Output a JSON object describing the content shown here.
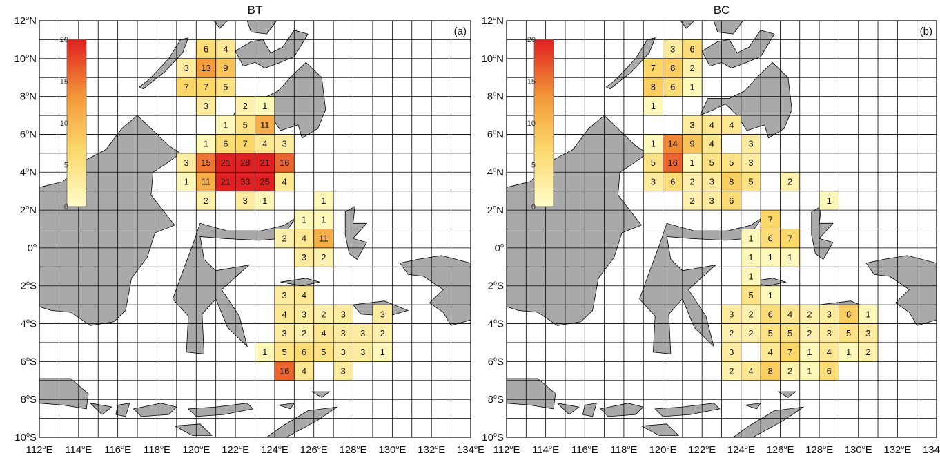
{
  "colorbar": {
    "min": 0,
    "max": 20,
    "ticks": [
      "0",
      "5",
      "10",
      "15",
      "20"
    ],
    "color_low": "#fffcc8",
    "color_high": "#e02020"
  },
  "land_color": "#a9a9a9",
  "x_ticks": [
    {
      "base": "112",
      "sup": "o",
      "suf": "E",
      "lon": 112
    },
    {
      "base": "114",
      "sup": "o",
      "suf": "E",
      "lon": 114
    },
    {
      "base": "116",
      "sup": "o",
      "suf": "E",
      "lon": 116
    },
    {
      "base": "118",
      "sup": "o",
      "suf": "E",
      "lon": 118
    },
    {
      "base": "120",
      "sup": "o",
      "suf": "E",
      "lon": 120
    },
    {
      "base": "122",
      "sup": "o",
      "suf": "E",
      "lon": 122
    },
    {
      "base": "124",
      "sup": "o",
      "suf": "E",
      "lon": 124
    },
    {
      "base": "126",
      "sup": "o",
      "suf": "E",
      "lon": 126
    },
    {
      "base": "128",
      "sup": "o",
      "suf": "E",
      "lon": 128
    },
    {
      "base": "130",
      "sup": "o",
      "suf": "E",
      "lon": 130
    },
    {
      "base": "132",
      "sup": "o",
      "suf": "E",
      "lon": 132
    },
    {
      "base": "134",
      "sup": "o",
      "suf": "E",
      "lon": 134
    }
  ],
  "y_ticks": [
    {
      "base": "12",
      "sup": "o",
      "suf": "N",
      "lat": 12
    },
    {
      "base": "10",
      "sup": "o",
      "suf": "N",
      "lat": 10
    },
    {
      "base": "8",
      "sup": "o",
      "suf": "N",
      "lat": 8
    },
    {
      "base": "6",
      "sup": "o",
      "suf": "N",
      "lat": 6
    },
    {
      "base": "4",
      "sup": "o",
      "suf": "N",
      "lat": 4
    },
    {
      "base": "2",
      "sup": "o",
      "suf": "N",
      "lat": 2
    },
    {
      "base": "0",
      "sup": "o",
      "suf": "",
      "lat": 0
    },
    {
      "base": "2",
      "sup": "o",
      "suf": "S",
      "lat": -2
    },
    {
      "base": "4",
      "sup": "o",
      "suf": "S",
      "lat": -4
    },
    {
      "base": "6",
      "sup": "o",
      "suf": "S",
      "lat": -6
    },
    {
      "base": "8",
      "sup": "o",
      "suf": "S",
      "lat": -8
    },
    {
      "base": "10",
      "sup": "o",
      "suf": "S",
      "lat": -10
    }
  ],
  "panels": [
    {
      "title": "BT",
      "label": "(a)",
      "cells": [
        {
          "lon": 120,
          "lat": 10,
          "v": 6
        },
        {
          "lon": 121,
          "lat": 10,
          "v": 4
        },
        {
          "lon": 119,
          "lat": 9,
          "v": 3
        },
        {
          "lon": 120,
          "lat": 9,
          "v": 13
        },
        {
          "lon": 121,
          "lat": 9,
          "v": 9
        },
        {
          "lon": 119,
          "lat": 8,
          "v": 7
        },
        {
          "lon": 120,
          "lat": 8,
          "v": 7
        },
        {
          "lon": 121,
          "lat": 8,
          "v": 5
        },
        {
          "lon": 120,
          "lat": 7,
          "v": 3
        },
        {
          "lon": 122,
          "lat": 7,
          "v": 2
        },
        {
          "lon": 123,
          "lat": 7,
          "v": 1
        },
        {
          "lon": 121,
          "lat": 6,
          "v": 1
        },
        {
          "lon": 122,
          "lat": 6,
          "v": 5
        },
        {
          "lon": 123,
          "lat": 6,
          "v": 11
        },
        {
          "lon": 120,
          "lat": 5,
          "v": 1
        },
        {
          "lon": 121,
          "lat": 5,
          "v": 6
        },
        {
          "lon": 122,
          "lat": 5,
          "v": 7
        },
        {
          "lon": 123,
          "lat": 5,
          "v": 4
        },
        {
          "lon": 124,
          "lat": 5,
          "v": 3
        },
        {
          "lon": 119,
          "lat": 4,
          "v": 3
        },
        {
          "lon": 120,
          "lat": 4,
          "v": 15
        },
        {
          "lon": 121,
          "lat": 4,
          "v": 21
        },
        {
          "lon": 122,
          "lat": 4,
          "v": 28
        },
        {
          "lon": 123,
          "lat": 4,
          "v": 21
        },
        {
          "lon": 124,
          "lat": 4,
          "v": 16
        },
        {
          "lon": 119,
          "lat": 3,
          "v": 1
        },
        {
          "lon": 120,
          "lat": 3,
          "v": 11
        },
        {
          "lon": 121,
          "lat": 3,
          "v": 21
        },
        {
          "lon": 122,
          "lat": 3,
          "v": 33
        },
        {
          "lon": 123,
          "lat": 3,
          "v": 25
        },
        {
          "lon": 124,
          "lat": 3,
          "v": 4
        },
        {
          "lon": 120,
          "lat": 2,
          "v": 2
        },
        {
          "lon": 122,
          "lat": 2,
          "v": 3
        },
        {
          "lon": 123,
          "lat": 2,
          "v": 1
        },
        {
          "lon": 126,
          "lat": 2,
          "v": 1
        },
        {
          "lon": 125,
          "lat": 1,
          "v": 1
        },
        {
          "lon": 126,
          "lat": 1,
          "v": 1
        },
        {
          "lon": 124,
          "lat": 0,
          "v": 2
        },
        {
          "lon": 125,
          "lat": 0,
          "v": 4
        },
        {
          "lon": 126,
          "lat": 0,
          "v": 11
        },
        {
          "lon": 125,
          "lat": -1,
          "v": 3
        },
        {
          "lon": 126,
          "lat": -1,
          "v": 2
        },
        {
          "lon": 124,
          "lat": -3,
          "v": 3
        },
        {
          "lon": 125,
          "lat": -3,
          "v": 4
        },
        {
          "lon": 124,
          "lat": -4,
          "v": 4
        },
        {
          "lon": 125,
          "lat": -4,
          "v": 3
        },
        {
          "lon": 126,
          "lat": -4,
          "v": 2
        },
        {
          "lon": 127,
          "lat": -4,
          "v": 3
        },
        {
          "lon": 129,
          "lat": -4,
          "v": 3
        },
        {
          "lon": 124,
          "lat": -5,
          "v": 3
        },
        {
          "lon": 125,
          "lat": -5,
          "v": 2
        },
        {
          "lon": 126,
          "lat": -5,
          "v": 4
        },
        {
          "lon": 127,
          "lat": -5,
          "v": 3
        },
        {
          "lon": 128,
          "lat": -5,
          "v": 3
        },
        {
          "lon": 129,
          "lat": -5,
          "v": 2
        },
        {
          "lon": 123,
          "lat": -6,
          "v": 1
        },
        {
          "lon": 124,
          "lat": -6,
          "v": 5
        },
        {
          "lon": 125,
          "lat": -6,
          "v": 6
        },
        {
          "lon": 126,
          "lat": -6,
          "v": 5
        },
        {
          "lon": 127,
          "lat": -6,
          "v": 3
        },
        {
          "lon": 128,
          "lat": -6,
          "v": 3
        },
        {
          "lon": 129,
          "lat": -6,
          "v": 1
        },
        {
          "lon": 124,
          "lat": -7,
          "v": 16
        },
        {
          "lon": 125,
          "lat": -7,
          "v": 4
        },
        {
          "lon": 127,
          "lat": -7,
          "v": 3
        }
      ]
    },
    {
      "title": "BC",
      "label": "(b)",
      "cells": [
        {
          "lon": 120,
          "lat": 10,
          "v": 3
        },
        {
          "lon": 121,
          "lat": 10,
          "v": 6
        },
        {
          "lon": 119,
          "lat": 9,
          "v": 7
        },
        {
          "lon": 120,
          "lat": 9,
          "v": 8
        },
        {
          "lon": 121,
          "lat": 9,
          "v": 2
        },
        {
          "lon": 119,
          "lat": 8,
          "v": 8
        },
        {
          "lon": 120,
          "lat": 8,
          "v": 6
        },
        {
          "lon": 121,
          "lat": 8,
          "v": 1
        },
        {
          "lon": 119,
          "lat": 7,
          "v": 1
        },
        {
          "lon": 121,
          "lat": 6,
          "v": 3
        },
        {
          "lon": 122,
          "lat": 6,
          "v": 4
        },
        {
          "lon": 123,
          "lat": 6,
          "v": 4
        },
        {
          "lon": 119,
          "lat": 5,
          "v": 1
        },
        {
          "lon": 120,
          "lat": 5,
          "v": 14
        },
        {
          "lon": 121,
          "lat": 5,
          "v": 9
        },
        {
          "lon": 122,
          "lat": 5,
          "v": 4
        },
        {
          "lon": 124,
          "lat": 5,
          "v": 3
        },
        {
          "lon": 119,
          "lat": 4,
          "v": 5
        },
        {
          "lon": 120,
          "lat": 4,
          "v": 16
        },
        {
          "lon": 121,
          "lat": 4,
          "v": 1
        },
        {
          "lon": 122,
          "lat": 4,
          "v": 5
        },
        {
          "lon": 123,
          "lat": 4,
          "v": 5
        },
        {
          "lon": 124,
          "lat": 4,
          "v": 3
        },
        {
          "lon": 119,
          "lat": 3,
          "v": 3
        },
        {
          "lon": 120,
          "lat": 3,
          "v": 6
        },
        {
          "lon": 121,
          "lat": 3,
          "v": 2
        },
        {
          "lon": 122,
          "lat": 3,
          "v": 3
        },
        {
          "lon": 123,
          "lat": 3,
          "v": 8
        },
        {
          "lon": 124,
          "lat": 3,
          "v": 5
        },
        {
          "lon": 126,
          "lat": 3,
          "v": 2
        },
        {
          "lon": 121,
          "lat": 2,
          "v": 2
        },
        {
          "lon": 122,
          "lat": 2,
          "v": 3
        },
        {
          "lon": 123,
          "lat": 2,
          "v": 6
        },
        {
          "lon": 128,
          "lat": 2,
          "v": 1
        },
        {
          "lon": 125,
          "lat": 1,
          "v": 7
        },
        {
          "lon": 124,
          "lat": 0,
          "v": 1
        },
        {
          "lon": 125,
          "lat": 0,
          "v": 6
        },
        {
          "lon": 126,
          "lat": 0,
          "v": 7
        },
        {
          "lon": 124,
          "lat": -1,
          "v": 1
        },
        {
          "lon": 125,
          "lat": -1,
          "v": 1
        },
        {
          "lon": 126,
          "lat": -1,
          "v": 1
        },
        {
          "lon": 124,
          "lat": -2,
          "v": 1
        },
        {
          "lon": 124,
          "lat": -3,
          "v": 5
        },
        {
          "lon": 125,
          "lat": -3,
          "v": 1
        },
        {
          "lon": 123,
          "lat": -4,
          "v": 3
        },
        {
          "lon": 124,
          "lat": -4,
          "v": 2
        },
        {
          "lon": 125,
          "lat": -4,
          "v": 6
        },
        {
          "lon": 126,
          "lat": -4,
          "v": 4
        },
        {
          "lon": 127,
          "lat": -4,
          "v": 2
        },
        {
          "lon": 128,
          "lat": -4,
          "v": 3
        },
        {
          "lon": 129,
          "lat": -4,
          "v": 8
        },
        {
          "lon": 130,
          "lat": -4,
          "v": 1
        },
        {
          "lon": 123,
          "lat": -5,
          "v": 2
        },
        {
          "lon": 124,
          "lat": -5,
          "v": 2
        },
        {
          "lon": 125,
          "lat": -5,
          "v": 5
        },
        {
          "lon": 126,
          "lat": -5,
          "v": 5
        },
        {
          "lon": 127,
          "lat": -5,
          "v": 2
        },
        {
          "lon": 128,
          "lat": -5,
          "v": 3
        },
        {
          "lon": 129,
          "lat": -5,
          "v": 5
        },
        {
          "lon": 130,
          "lat": -5,
          "v": 3
        },
        {
          "lon": 123,
          "lat": -6,
          "v": 3
        },
        {
          "lon": 125,
          "lat": -6,
          "v": 4
        },
        {
          "lon": 126,
          "lat": -6,
          "v": 7
        },
        {
          "lon": 127,
          "lat": -6,
          "v": 1
        },
        {
          "lon": 128,
          "lat": -6,
          "v": 4
        },
        {
          "lon": 129,
          "lat": -6,
          "v": 1
        },
        {
          "lon": 130,
          "lat": -6,
          "v": 2
        },
        {
          "lon": 123,
          "lat": -7,
          "v": 2
        },
        {
          "lon": 124,
          "lat": -7,
          "v": 4
        },
        {
          "lon": 125,
          "lat": -7,
          "v": 8
        },
        {
          "lon": 126,
          "lat": -7,
          "v": 2
        },
        {
          "lon": 127,
          "lat": -7,
          "v": 1
        },
        {
          "lon": 128,
          "lat": -7,
          "v": 6
        }
      ]
    }
  ]
}
